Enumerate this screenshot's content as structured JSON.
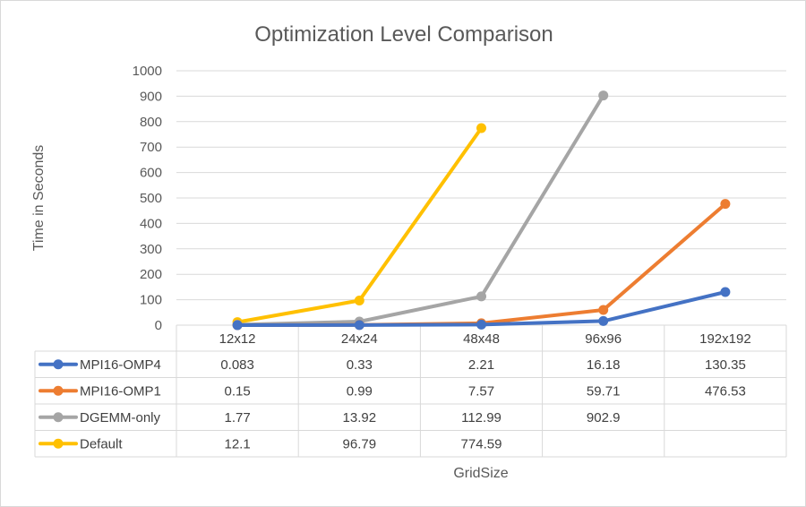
{
  "chart_data": {
    "type": "line",
    "title": "Optimization Level Comparison",
    "xlabel": "GridSize",
    "ylabel": "Time in Seconds",
    "categories": [
      "12x12",
      "24x24",
      "48x48",
      "96x96",
      "192x192"
    ],
    "ylim": [
      0,
      1000
    ],
    "yticks": [
      "0",
      "100",
      "200",
      "300",
      "400",
      "500",
      "600",
      "700",
      "800",
      "900",
      "1000"
    ],
    "grid": true,
    "legend": "data-table",
    "series": [
      {
        "name": "MPI16-OMP4",
        "color": "#4472C4",
        "values": [
          0.083,
          0.33,
          2.21,
          16.18,
          130.35
        ],
        "labels": [
          "0.083",
          "0.33",
          "2.21",
          "16.18",
          "130.35"
        ]
      },
      {
        "name": "MPI16-OMP1",
        "color": "#ED7D31",
        "values": [
          0.15,
          0.99,
          7.57,
          59.71,
          476.53
        ],
        "labels": [
          "0.15",
          "0.99",
          "7.57",
          "59.71",
          "476.53"
        ]
      },
      {
        "name": "DGEMM-only",
        "color": "#A5A5A5",
        "values": [
          1.77,
          13.92,
          112.99,
          902.9,
          null
        ],
        "labels": [
          "1.77",
          "13.92",
          "112.99",
          "902.9",
          ""
        ]
      },
      {
        "name": "Default",
        "color": "#FFC000",
        "values": [
          12.1,
          96.79,
          774.59,
          null,
          null
        ],
        "labels": [
          "12.1",
          "96.79",
          "774.59",
          "",
          ""
        ]
      }
    ]
  }
}
